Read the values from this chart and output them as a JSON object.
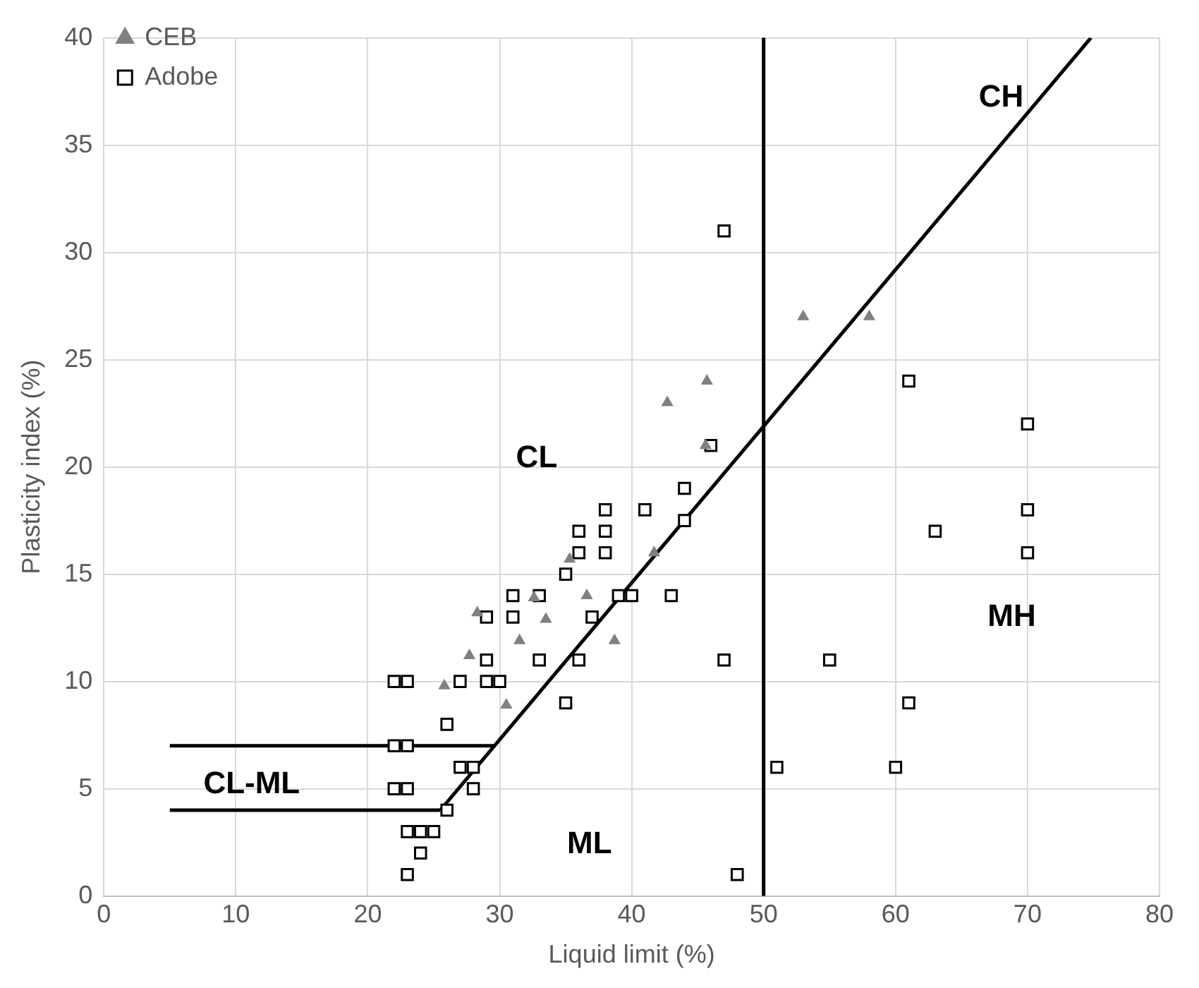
{
  "chart_data": {
    "type": "scatter",
    "xlabel": "Liquid limit (%)",
    "ylabel": "Plasticity index (%)",
    "xlim": [
      0,
      80
    ],
    "xticks": [
      0,
      10,
      20,
      30,
      40,
      50,
      60,
      70,
      80
    ],
    "ylim": [
      0,
      40
    ],
    "yticks": [
      0,
      5,
      10,
      15,
      20,
      25,
      30,
      35,
      40
    ],
    "grid": true,
    "legend": "top left",
    "series": [
      {
        "name": "CEB",
        "marker": "triangle",
        "color": "#808080",
        "x": [
          25.8,
          27.7,
          28.3,
          30.5,
          31.5,
          32.6,
          33.5,
          35.3,
          36.6,
          38.7,
          41.7,
          42.7,
          45.7,
          45.6,
          53,
          58
        ],
        "values": [
          9.8,
          11.2,
          13.2,
          8.9,
          11.9,
          13.9,
          12.9,
          15.7,
          14,
          11.9,
          16,
          23,
          24,
          21,
          27,
          27
        ]
      },
      {
        "name": "Adobe",
        "marker": "square",
        "color": "#000000",
        "x": [
          22,
          23,
          22,
          23,
          22,
          23,
          23,
          24,
          25,
          24,
          23,
          26,
          26,
          27,
          28,
          28,
          27,
          29,
          30,
          29,
          29,
          31,
          31,
          33,
          33,
          35,
          35,
          36,
          36,
          36,
          37,
          38,
          38,
          38,
          39,
          40,
          41,
          43,
          44,
          44,
          46,
          47,
          47,
          48,
          51,
          55,
          60,
          61,
          61,
          63,
          70,
          70,
          70
        ],
        "values": [
          10,
          10,
          7,
          7,
          5,
          5,
          3,
          3,
          3,
          2,
          1,
          4,
          8,
          6,
          6,
          5,
          10,
          10,
          10,
          11,
          13,
          13,
          14,
          14,
          11,
          9,
          15,
          16,
          17,
          11,
          13,
          18,
          17,
          16,
          14,
          14,
          18,
          14,
          19,
          17.5,
          21,
          31,
          11,
          1,
          6,
          11,
          6,
          9,
          24,
          17,
          22,
          18,
          16
        ]
      },
      {
        "type": "line",
        "marker": "none",
        "color": "#000000",
        "x": [
          25.5,
          29.6,
          74.8
        ],
        "values": [
          4,
          7,
          40
        ]
      },
      {
        "type": "line",
        "marker": "none",
        "color": "#000000",
        "x": [
          5,
          29.6
        ],
        "values": [
          7,
          7
        ]
      },
      {
        "type": "line",
        "marker": "none",
        "color": "#000000",
        "x": [
          5,
          25.5
        ],
        "values": [
          4,
          4
        ]
      }
    ],
    "ref_lines": [
      {
        "axis": "x",
        "value": 50,
        "color": "#000000"
      }
    ],
    "annotations": [
      "CH",
      "CL",
      "MH",
      "ML",
      "CL-ML"
    ]
  }
}
